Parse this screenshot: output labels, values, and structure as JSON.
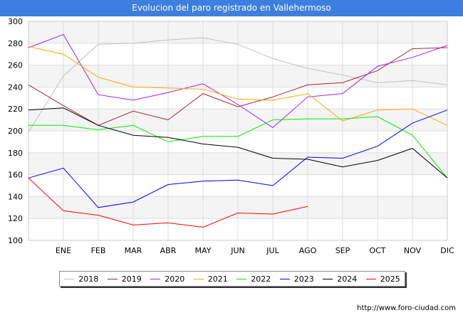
{
  "chart_data": {
    "type": "line",
    "title": "Evolucion del paro registrado en Vallehermoso",
    "categories": [
      "",
      "ENE",
      "FEB",
      "MAR",
      "ABR",
      "MAY",
      "JUN",
      "JUL",
      "AGO",
      "SEP",
      "OCT",
      "NOV",
      "DIC"
    ],
    "ylim": [
      100,
      300
    ],
    "yticks": [
      100,
      120,
      140,
      160,
      180,
      200,
      220,
      240,
      260,
      280,
      300
    ],
    "xlabel": "",
    "ylabel": "",
    "grid": true,
    "legend_position": "bottom",
    "series": [
      {
        "name": "2018",
        "color": "#c0c0c0",
        "values": [
          199,
          250,
          279,
          280,
          283,
          285,
          279,
          266,
          257,
          251,
          244,
          246,
          242
        ]
      },
      {
        "name": "2019",
        "color": "#a52a2a",
        "values": [
          242,
          223,
          205,
          218,
          210,
          234,
          222,
          231,
          242,
          244,
          255,
          275,
          276
        ]
      },
      {
        "name": "2020",
        "color": "#a020f0",
        "values": [
          276,
          288,
          233,
          228,
          235,
          243,
          224,
          203,
          231,
          234,
          259,
          267,
          278
        ]
      },
      {
        "name": "2021",
        "color": "#ffa500",
        "values": [
          277,
          270,
          249,
          240,
          239,
          238,
          229,
          228,
          234,
          209,
          219,
          220,
          205
        ]
      },
      {
        "name": "2022",
        "color": "#00ee00",
        "values": [
          205,
          205,
          201,
          205,
          190,
          195,
          195,
          210,
          211,
          211,
          213,
          196,
          157
        ]
      },
      {
        "name": "2023",
        "color": "#0000ff",
        "values": [
          157,
          166,
          130,
          135,
          151,
          154,
          155,
          150,
          176,
          175,
          186,
          207,
          219
        ]
      },
      {
        "name": "2024",
        "color": "#000000",
        "values": [
          219,
          221,
          205,
          196,
          194,
          188,
          185,
          175,
          174,
          167,
          173,
          184,
          157
        ]
      },
      {
        "name": "2025",
        "color": "#ff0000",
        "values": [
          157,
          127,
          123,
          114,
          116,
          112,
          125,
          124,
          131,
          null,
          null,
          null,
          null
        ]
      }
    ]
  },
  "footer": {
    "url": "http://www.foro-ciudad.com"
  }
}
